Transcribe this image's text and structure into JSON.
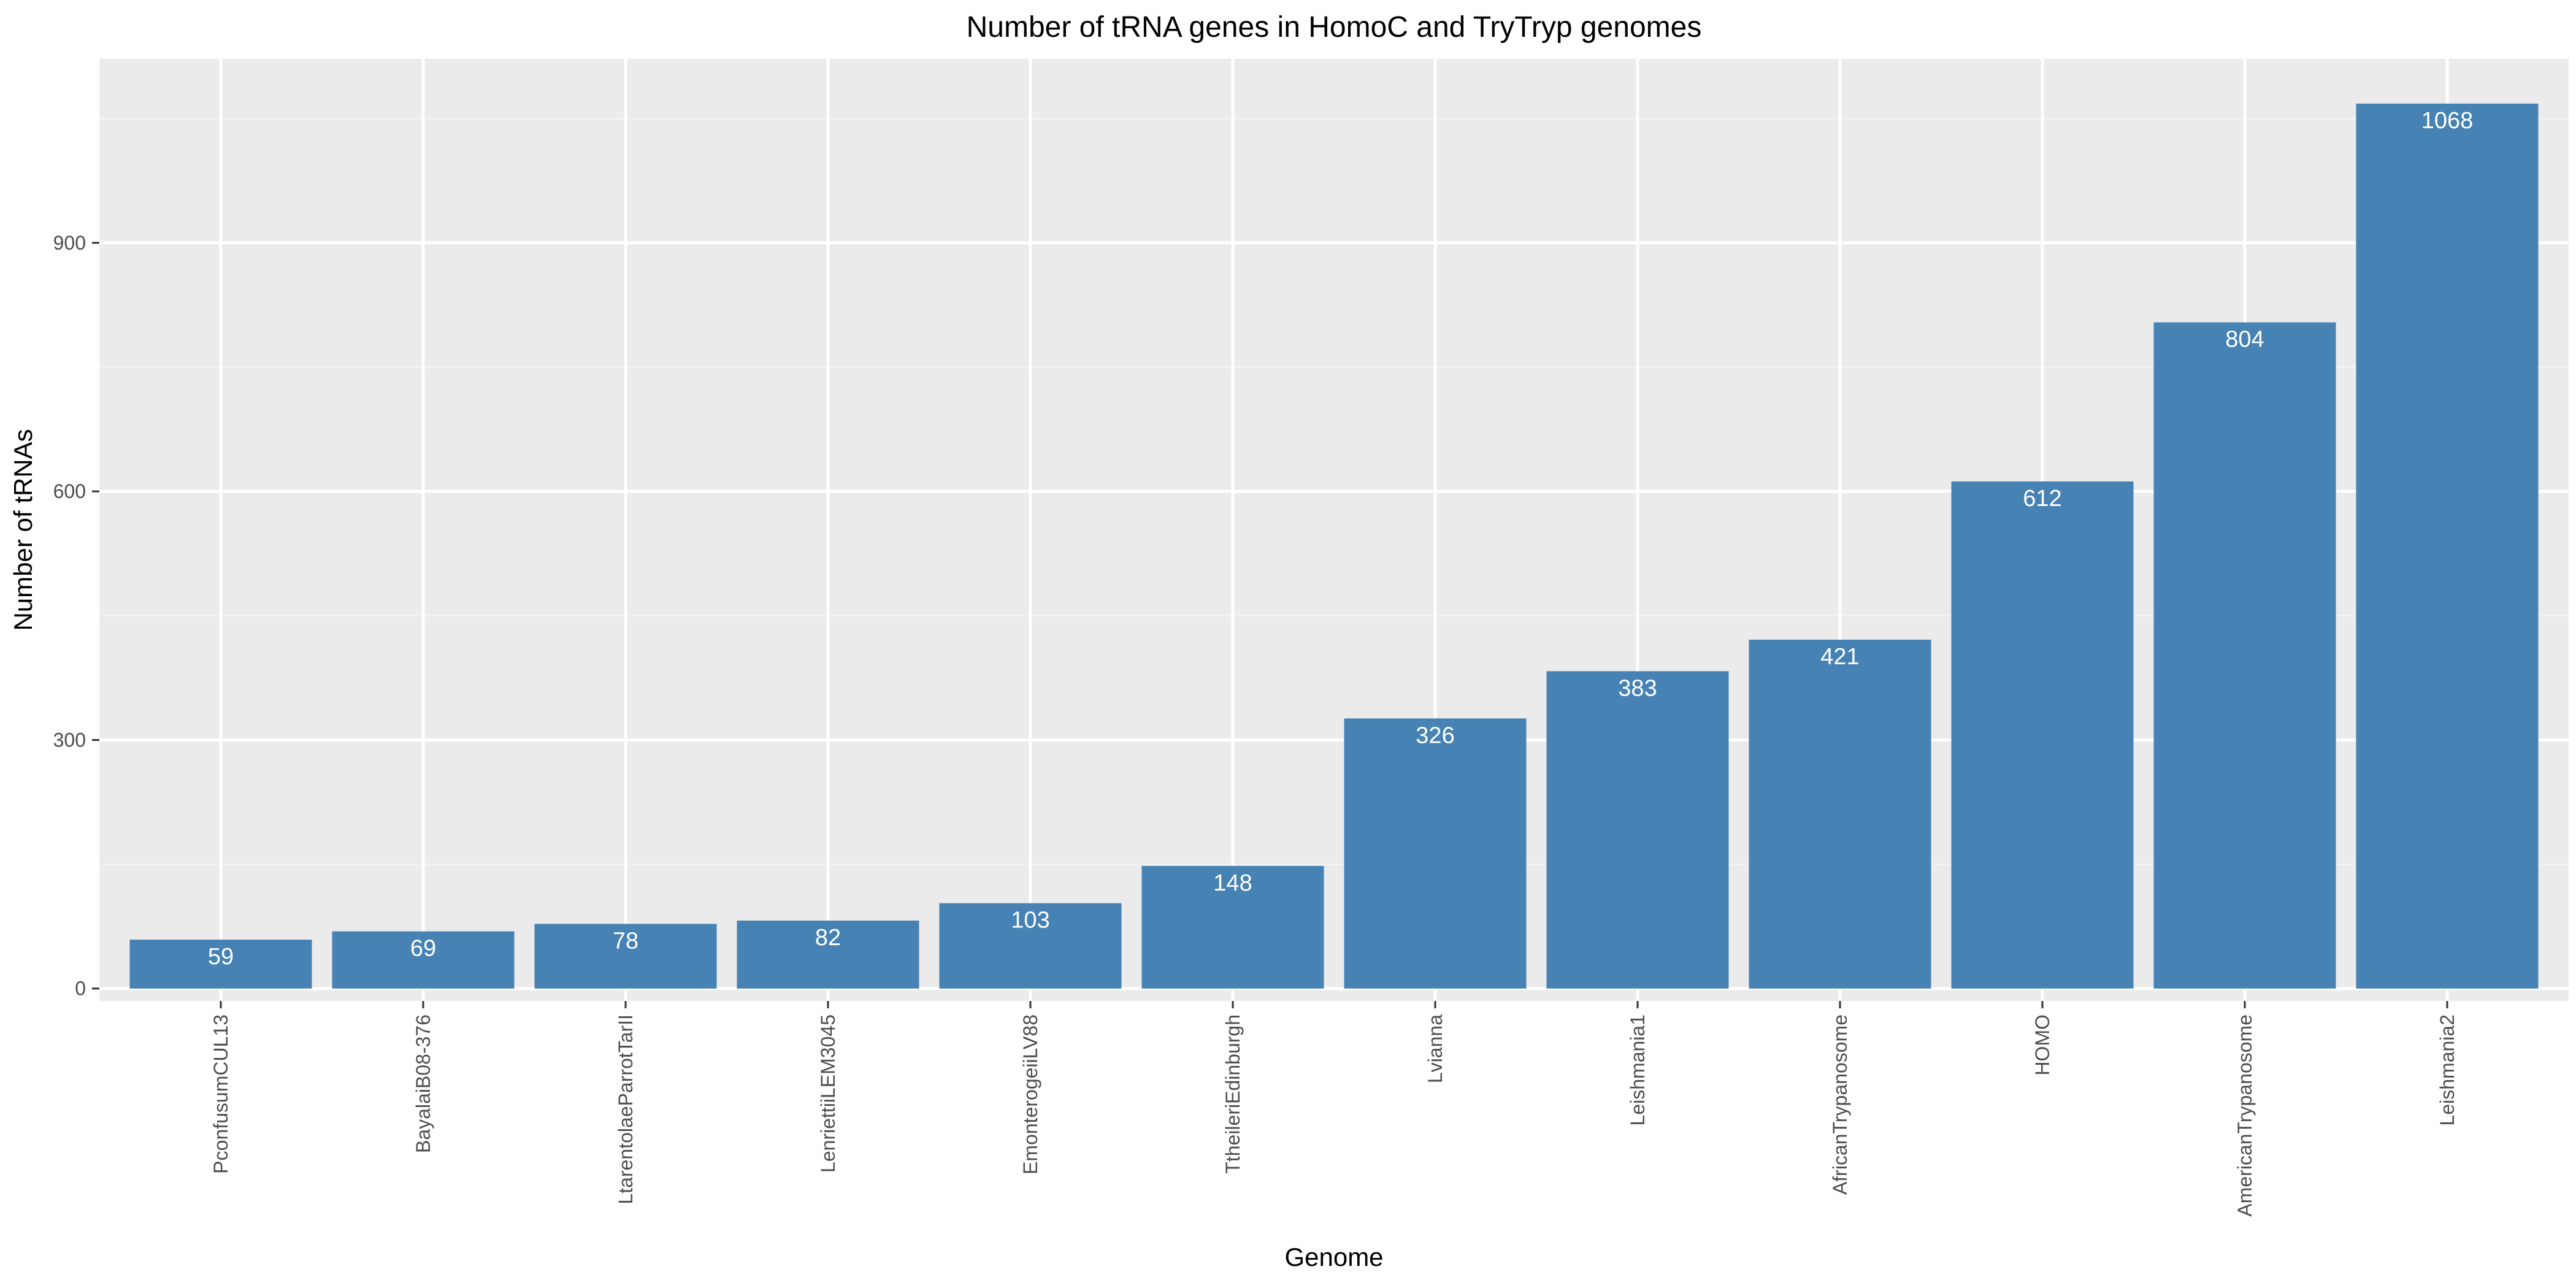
{
  "chart_data": {
    "type": "bar",
    "title": "Number of tRNA genes in HomoC and TryTryp genomes",
    "xlabel": "Genome",
    "ylabel": "Number of tRNAs",
    "categories": [
      "PconfusumCUL13",
      "BayalaiB08-376",
      "LtarentolaeParrotTarII",
      "LenriettiiLEM3045",
      "EmonterogeiiLV88",
      "TtheileriEdinburgh",
      "Lvianna",
      "Leishmania1",
      "AfricanTrypanosome",
      "HOMO",
      "AmericanTrypanosome",
      "Leishmania2"
    ],
    "values": [
      59,
      69,
      78,
      82,
      103,
      148,
      326,
      383,
      421,
      612,
      804,
      1068
    ],
    "ylim": [
      -15,
      1122
    ],
    "yticks": [
      0,
      300,
      600,
      900
    ],
    "grid": true,
    "legend": "none",
    "colors": {
      "bar": "#4682b4",
      "panel": "#ebebeb",
      "grid_major": "#ffffff",
      "grid_minor": "#f3f3f3",
      "tick_text": "#4d4d4d",
      "bar_label": "#ffffff"
    }
  }
}
